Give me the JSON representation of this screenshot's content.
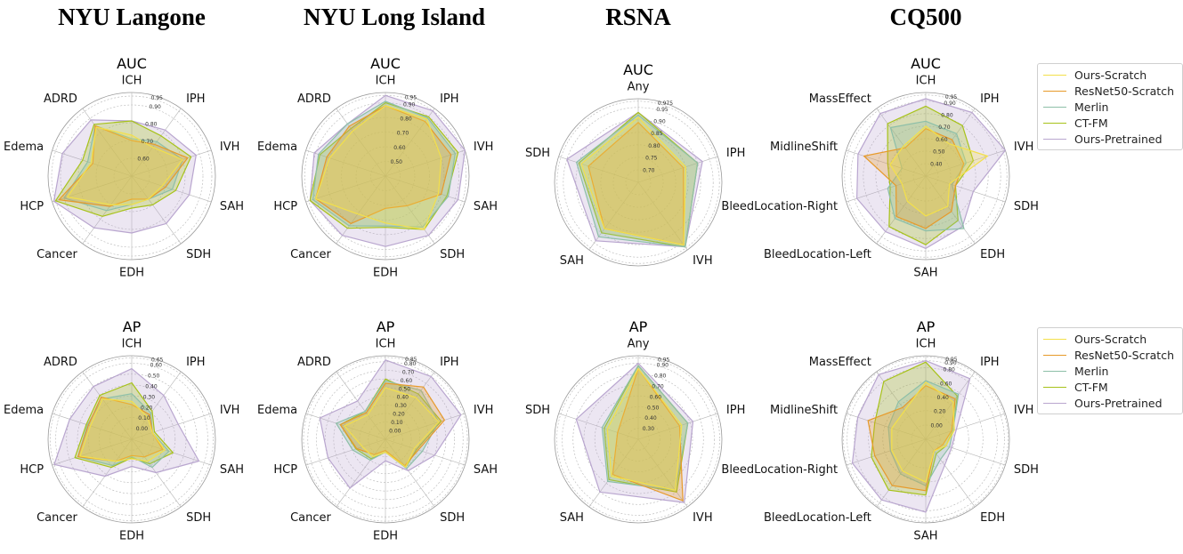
{
  "datasets": [
    {
      "title": "NYU Langone",
      "cx": 148
    },
    {
      "title": "NYU Long Island",
      "cx": 433
    },
    {
      "title": "RSNA",
      "cx": 717
    },
    {
      "title": "CQ500",
      "cx": 1040
    }
  ],
  "legend": [
    {
      "name": "Ours-Scratch",
      "color": "#f3e04a"
    },
    {
      "name": "ResNet50-Scratch",
      "color": "#e79a2a"
    },
    {
      "name": "Merlin",
      "color": "#8dbfa8"
    },
    {
      "name": "CT-FM",
      "color": "#a7c21a"
    },
    {
      "name": "Ours-Pretrained",
      "color": "#b9a6cf"
    }
  ],
  "chart_data": [
    {
      "type": "radar",
      "title": "AUC",
      "dataset": "NYU Langone",
      "categories": [
        "ICH",
        "IPH",
        "IVH",
        "SAH",
        "SDH",
        "EDH",
        "Cancer",
        "HCP",
        "Edema",
        "ADRD"
      ],
      "rticks": [
        0.6,
        0.7,
        0.8,
        0.9,
        0.95
      ],
      "rlim": [
        0.5,
        0.97
      ],
      "series": [
        {
          "name": "Ours-Scratch",
          "values": [
            0.73,
            0.7,
            0.8,
            0.68,
            0.66,
            0.66,
            0.7,
            0.88,
            0.74,
            0.84
          ]
        },
        {
          "name": "ResNet50-Scratch",
          "values": [
            0.7,
            0.72,
            0.83,
            0.7,
            0.66,
            0.63,
            0.71,
            0.93,
            0.73,
            0.85
          ]
        },
        {
          "name": "Merlin",
          "values": [
            0.71,
            0.74,
            0.8,
            0.74,
            0.66,
            0.66,
            0.74,
            0.9,
            0.76,
            0.85
          ]
        },
        {
          "name": "CT-FM",
          "values": [
            0.81,
            0.78,
            0.85,
            0.76,
            0.7,
            0.68,
            0.78,
            0.95,
            0.79,
            0.86
          ]
        },
        {
          "name": "Ours-Pretrained",
          "values": [
            0.81,
            0.82,
            0.88,
            0.84,
            0.83,
            0.82,
            0.86,
            0.96,
            0.91,
            0.89
          ]
        }
      ]
    },
    {
      "type": "radar",
      "title": "AUC",
      "dataset": "NYU Long Island",
      "categories": [
        "ICH",
        "IPH",
        "IVH",
        "SAH",
        "SDH",
        "EDH",
        "Cancer",
        "HCP",
        "Edema",
        "ADRD"
      ],
      "rticks": [
        0.5,
        0.6,
        0.7,
        0.8,
        0.9,
        0.95
      ],
      "rlim": [
        0.4,
        0.97
      ],
      "series": [
        {
          "name": "Ours-Scratch",
          "values": [
            0.88,
            0.88,
            0.8,
            0.78,
            0.85,
            0.72,
            0.72,
            0.9,
            0.8,
            0.78
          ]
        },
        {
          "name": "ResNet50-Scratch",
          "values": [
            0.88,
            0.86,
            0.87,
            0.8,
            0.65,
            0.62,
            0.8,
            0.9,
            0.82,
            0.82
          ]
        },
        {
          "name": "Merlin",
          "values": [
            0.91,
            0.89,
            0.9,
            0.85,
            0.83,
            0.74,
            0.82,
            0.92,
            0.88,
            0.84
          ]
        },
        {
          "name": "CT-FM",
          "values": [
            0.9,
            0.9,
            0.92,
            0.84,
            0.85,
            0.75,
            0.84,
            0.94,
            0.87,
            0.8
          ]
        },
        {
          "name": "Ours-Pretrained",
          "values": [
            0.95,
            0.95,
            0.97,
            0.92,
            0.9,
            0.88,
            0.9,
            0.94,
            0.91,
            0.84
          ]
        }
      ]
    },
    {
      "type": "radar",
      "title": "AUC",
      "dataset": "RSNA",
      "categories": [
        "Any",
        "IPH",
        "IVH",
        "SAH",
        "SDH"
      ],
      "rticks": [
        0.7,
        0.75,
        0.8,
        0.85,
        0.9,
        0.95,
        0.975
      ],
      "rlim": [
        0.65,
        0.985
      ],
      "series": [
        {
          "name": "Ours-Scratch",
          "values": [
            0.91,
            0.85,
            0.96,
            0.88,
            0.89
          ]
        },
        {
          "name": "ResNet50-Scratch",
          "values": [
            0.89,
            0.84,
            0.96,
            0.88,
            0.86
          ]
        },
        {
          "name": "Merlin",
          "values": [
            0.92,
            0.9,
            0.97,
            0.92,
            0.91
          ]
        },
        {
          "name": "CT-FM",
          "values": [
            0.93,
            0.9,
            0.97,
            0.9,
            0.9
          ]
        },
        {
          "name": "Ours-Pretrained",
          "values": [
            0.93,
            0.92,
            0.97,
            0.94,
            0.95
          ]
        }
      ]
    },
    {
      "type": "radar",
      "title": "AUC",
      "dataset": "CQ500",
      "categories": [
        "ICH",
        "IPH",
        "IVH",
        "SDH",
        "EDH",
        "SAH",
        "BleedLocation-Left",
        "BleedLocation-Right",
        "MidlineShift",
        "MassEffect"
      ],
      "rticks": [
        0.4,
        0.5,
        0.6,
        0.7,
        0.8,
        0.9,
        0.95
      ],
      "rlim": [
        0.3,
        0.97
      ],
      "series": [
        {
          "name": "Ours-Scratch",
          "values": [
            0.7,
            0.62,
            0.82,
            0.5,
            0.6,
            0.62,
            0.55,
            0.5,
            0.6,
            0.6
          ]
        },
        {
          "name": "ResNet50-Scratch",
          "values": [
            0.68,
            0.66,
            0.62,
            0.55,
            0.65,
            0.72,
            0.7,
            0.55,
            0.82,
            0.58
          ]
        },
        {
          "name": "Merlin",
          "values": [
            0.74,
            0.72,
            0.64,
            0.52,
            0.82,
            0.74,
            0.72,
            0.62,
            0.5,
            0.78
          ]
        },
        {
          "name": "CT-FM",
          "values": [
            0.86,
            0.8,
            0.7,
            0.55,
            0.74,
            0.85,
            0.8,
            0.6,
            0.62,
            0.82
          ]
        },
        {
          "name": "Ours-Pretrained",
          "values": [
            0.92,
            0.93,
            0.97,
            0.7,
            0.8,
            0.88,
            0.85,
            0.88,
            0.87,
            0.92
          ]
        }
      ]
    },
    {
      "type": "radar",
      "title": "AP",
      "dataset": "NYU Langone",
      "categories": [
        "ICH",
        "IPH",
        "IVH",
        "SAH",
        "SDH",
        "EDH",
        "Cancer",
        "HCP",
        "Edema",
        "ADRD"
      ],
      "rticks": [
        0.0,
        0.1,
        0.2,
        0.3,
        0.4,
        0.5,
        0.6,
        0.65
      ],
      "rlim": [
        -0.1,
        0.67
      ],
      "series": [
        {
          "name": "Ours-Scratch",
          "values": [
            0.25,
            0.15,
            0.1,
            0.22,
            0.15,
            0.08,
            0.15,
            0.4,
            0.3,
            0.36
          ]
        },
        {
          "name": "ResNet50-Scratch",
          "values": [
            0.22,
            0.18,
            0.1,
            0.2,
            0.1,
            0.05,
            0.15,
            0.42,
            0.32,
            0.38
          ]
        },
        {
          "name": "Merlin",
          "values": [
            0.32,
            0.2,
            0.1,
            0.26,
            0.22,
            0.06,
            0.2,
            0.42,
            0.33,
            0.36
          ]
        },
        {
          "name": "CT-FM",
          "values": [
            0.42,
            0.22,
            0.12,
            0.3,
            0.18,
            0.07,
            0.22,
            0.45,
            0.34,
            0.4
          ]
        },
        {
          "name": "Ours-Pretrained",
          "values": [
            0.55,
            0.4,
            0.35,
            0.55,
            0.28,
            0.15,
            0.32,
            0.65,
            0.5,
            0.5
          ]
        }
      ]
    },
    {
      "type": "radar",
      "title": "AP",
      "dataset": "NYU Long Island",
      "categories": [
        "ICH",
        "IPH",
        "IVH",
        "SAH",
        "SDH",
        "EDH",
        "Cancer",
        "HCP",
        "Edema",
        "ADRD"
      ],
      "rticks": [
        0.0,
        0.1,
        0.2,
        0.3,
        0.4,
        0.5,
        0.6,
        0.7,
        0.8,
        0.85
      ],
      "rlim": [
        -0.1,
        0.87
      ],
      "series": [
        {
          "name": "Ours-Scratch",
          "values": [
            0.5,
            0.5,
            0.55,
            0.25,
            0.3,
            0.05,
            0.15,
            0.18,
            0.4,
            0.25
          ]
        },
        {
          "name": "ResNet50-Scratch",
          "values": [
            0.55,
            0.65,
            0.62,
            0.3,
            0.28,
            0.03,
            0.12,
            0.25,
            0.45,
            0.28
          ]
        },
        {
          "name": "Merlin",
          "values": [
            0.58,
            0.6,
            0.55,
            0.35,
            0.32,
            0.05,
            0.2,
            0.3,
            0.5,
            0.3
          ]
        },
        {
          "name": "CT-FM",
          "values": [
            0.6,
            0.55,
            0.58,
            0.28,
            0.3,
            0.05,
            0.18,
            0.26,
            0.45,
            0.3
          ]
        },
        {
          "name": "Ours-Pretrained",
          "values": [
            0.82,
            0.8,
            0.82,
            0.5,
            0.35,
            0.15,
            0.6,
            0.6,
            0.7,
            0.45
          ]
        }
      ]
    },
    {
      "type": "radar",
      "title": "AP",
      "dataset": "RSNA",
      "categories": [
        "Any",
        "IPH",
        "IVH",
        "SAH",
        "SDH"
      ],
      "rticks": [
        0.3,
        0.4,
        0.5,
        0.6,
        0.7,
        0.8,
        0.9,
        0.95
      ],
      "rlim": [
        0.2,
        0.97
      ],
      "series": [
        {
          "name": "Ours-Scratch",
          "values": [
            0.85,
            0.62,
            0.78,
            0.62,
            0.5
          ]
        },
        {
          "name": "ResNet50-Scratch",
          "values": [
            0.85,
            0.6,
            0.9,
            0.6,
            0.4
          ]
        },
        {
          "name": "Merlin",
          "values": [
            0.88,
            0.68,
            0.78,
            0.68,
            0.55
          ]
        },
        {
          "name": "CT-FM",
          "values": [
            0.88,
            0.68,
            0.8,
            0.66,
            0.53
          ]
        },
        {
          "name": "Ours-Pretrained",
          "values": [
            0.9,
            0.73,
            0.92,
            0.8,
            0.8
          ]
        }
      ]
    },
    {
      "type": "radar",
      "title": "AP",
      "dataset": "CQ500",
      "categories": [
        "ICH",
        "IPH",
        "IVH",
        "SDH",
        "EDH",
        "SAH",
        "BleedLocation-Left",
        "BleedLocation-Right",
        "MidlineShift",
        "MassEffect"
      ],
      "rticks": [
        0.0,
        0.2,
        0.4,
        0.6,
        0.8,
        0.9,
        0.95
      ],
      "rlim": [
        -0.2,
        0.97
      ],
      "series": [
        {
          "name": "Ours-Scratch",
          "values": [
            0.6,
            0.45,
            0.22,
            0.1,
            0.0,
            0.4,
            0.35,
            0.3,
            0.3,
            0.3
          ]
        },
        {
          "name": "ResNet50-Scratch",
          "values": [
            0.55,
            0.5,
            0.18,
            0.05,
            0.0,
            0.52,
            0.6,
            0.55,
            0.65,
            0.35
          ]
        },
        {
          "name": "Merlin",
          "values": [
            0.62,
            0.58,
            0.2,
            0.15,
            0.15,
            0.45,
            0.4,
            0.32,
            0.35,
            0.45
          ]
        },
        {
          "name": "CT-FM",
          "values": [
            0.88,
            0.55,
            0.2,
            0.1,
            0.05,
            0.58,
            0.68,
            0.6,
            0.55,
            0.8
          ]
        },
        {
          "name": "Ours-Pretrained",
          "values": [
            0.9,
            0.85,
            0.25,
            0.18,
            0.25,
            0.82,
            0.85,
            0.88,
            0.8,
            0.92
          ]
        }
      ]
    }
  ]
}
